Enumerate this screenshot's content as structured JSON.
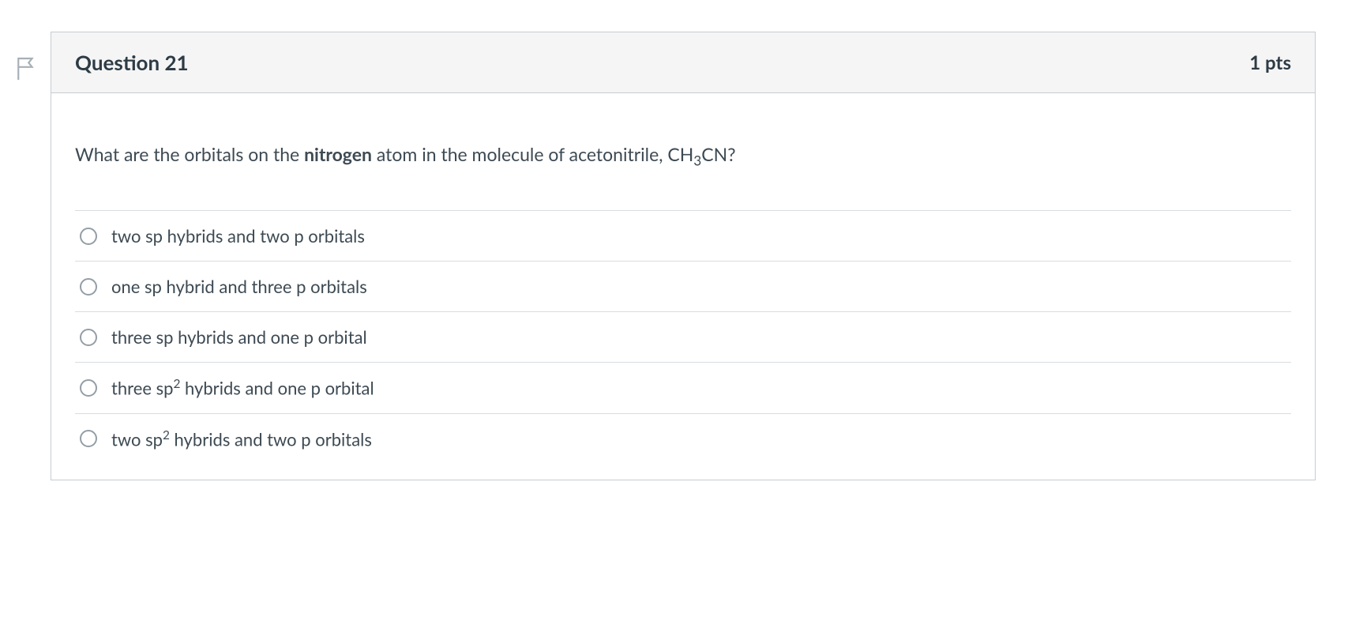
{
  "question": {
    "title": "Question 21",
    "points": "1 pts",
    "text_before_bold": "What are the orbitals on the ",
    "bold_word": "nitrogen",
    "text_after_bold_before_sub": " atom in the molecule of acetonitrile, CH",
    "sub": "3",
    "text_after_sub": "CN?"
  },
  "answers": [
    {
      "text": "two sp hybrids and two p orbitals",
      "has_sup": false
    },
    {
      "text": "one sp hybrid and three p orbitals",
      "has_sup": false
    },
    {
      "text": "three sp hybrids and one p orbital",
      "has_sup": false
    },
    {
      "pre": "three sp",
      "sup": "2",
      "post": " hybrids and one p orbital",
      "has_sup": true
    },
    {
      "pre": "two sp",
      "sup": "2",
      "post": " hybrids and two p orbitals",
      "has_sup": true
    }
  ]
}
